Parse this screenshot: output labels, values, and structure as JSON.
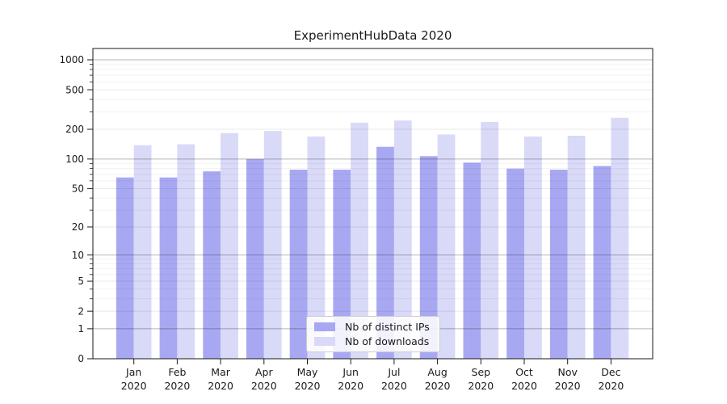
{
  "chart_data": {
    "type": "bar",
    "title": "ExperimentHubData 2020",
    "categories": [
      "Jan",
      "Feb",
      "Mar",
      "Apr",
      "May",
      "Jun",
      "Jul",
      "Aug",
      "Sep",
      "Oct",
      "Nov",
      "Dec"
    ],
    "x_tick_year": "2020",
    "series": [
      {
        "name": "Nb of distinct IPs",
        "color": "#a8a8f2",
        "values": [
          65,
          65,
          75,
          100,
          78,
          78,
          133,
          107,
          92,
          80,
          78,
          85
        ]
      },
      {
        "name": "Nb of downloads",
        "color": "#d9d9f8",
        "values": [
          138,
          141,
          183,
          192,
          169,
          233,
          245,
          177,
          237,
          169,
          172,
          261
        ]
      }
    ],
    "yscale": "symlog",
    "ylim": [
      0,
      1000
    ],
    "y_tick_labels": [
      1000,
      500,
      200,
      100,
      50,
      20,
      10,
      5,
      2,
      1,
      0
    ],
    "grid": "horizontal major and minor gridlines drawn over bars",
    "legend_position": "bottom-center inside plot"
  },
  "colors": {
    "background": "#ffffff",
    "axis": "#1a1a1a",
    "text": "#1a1a1a",
    "grid_major": "rgba(0,0,0,0.29)",
    "grid_mid": "rgba(0,0,0,0.09)",
    "grid_minor": "rgba(0,0,0,0.05)",
    "legend_border": "#cccccc"
  }
}
